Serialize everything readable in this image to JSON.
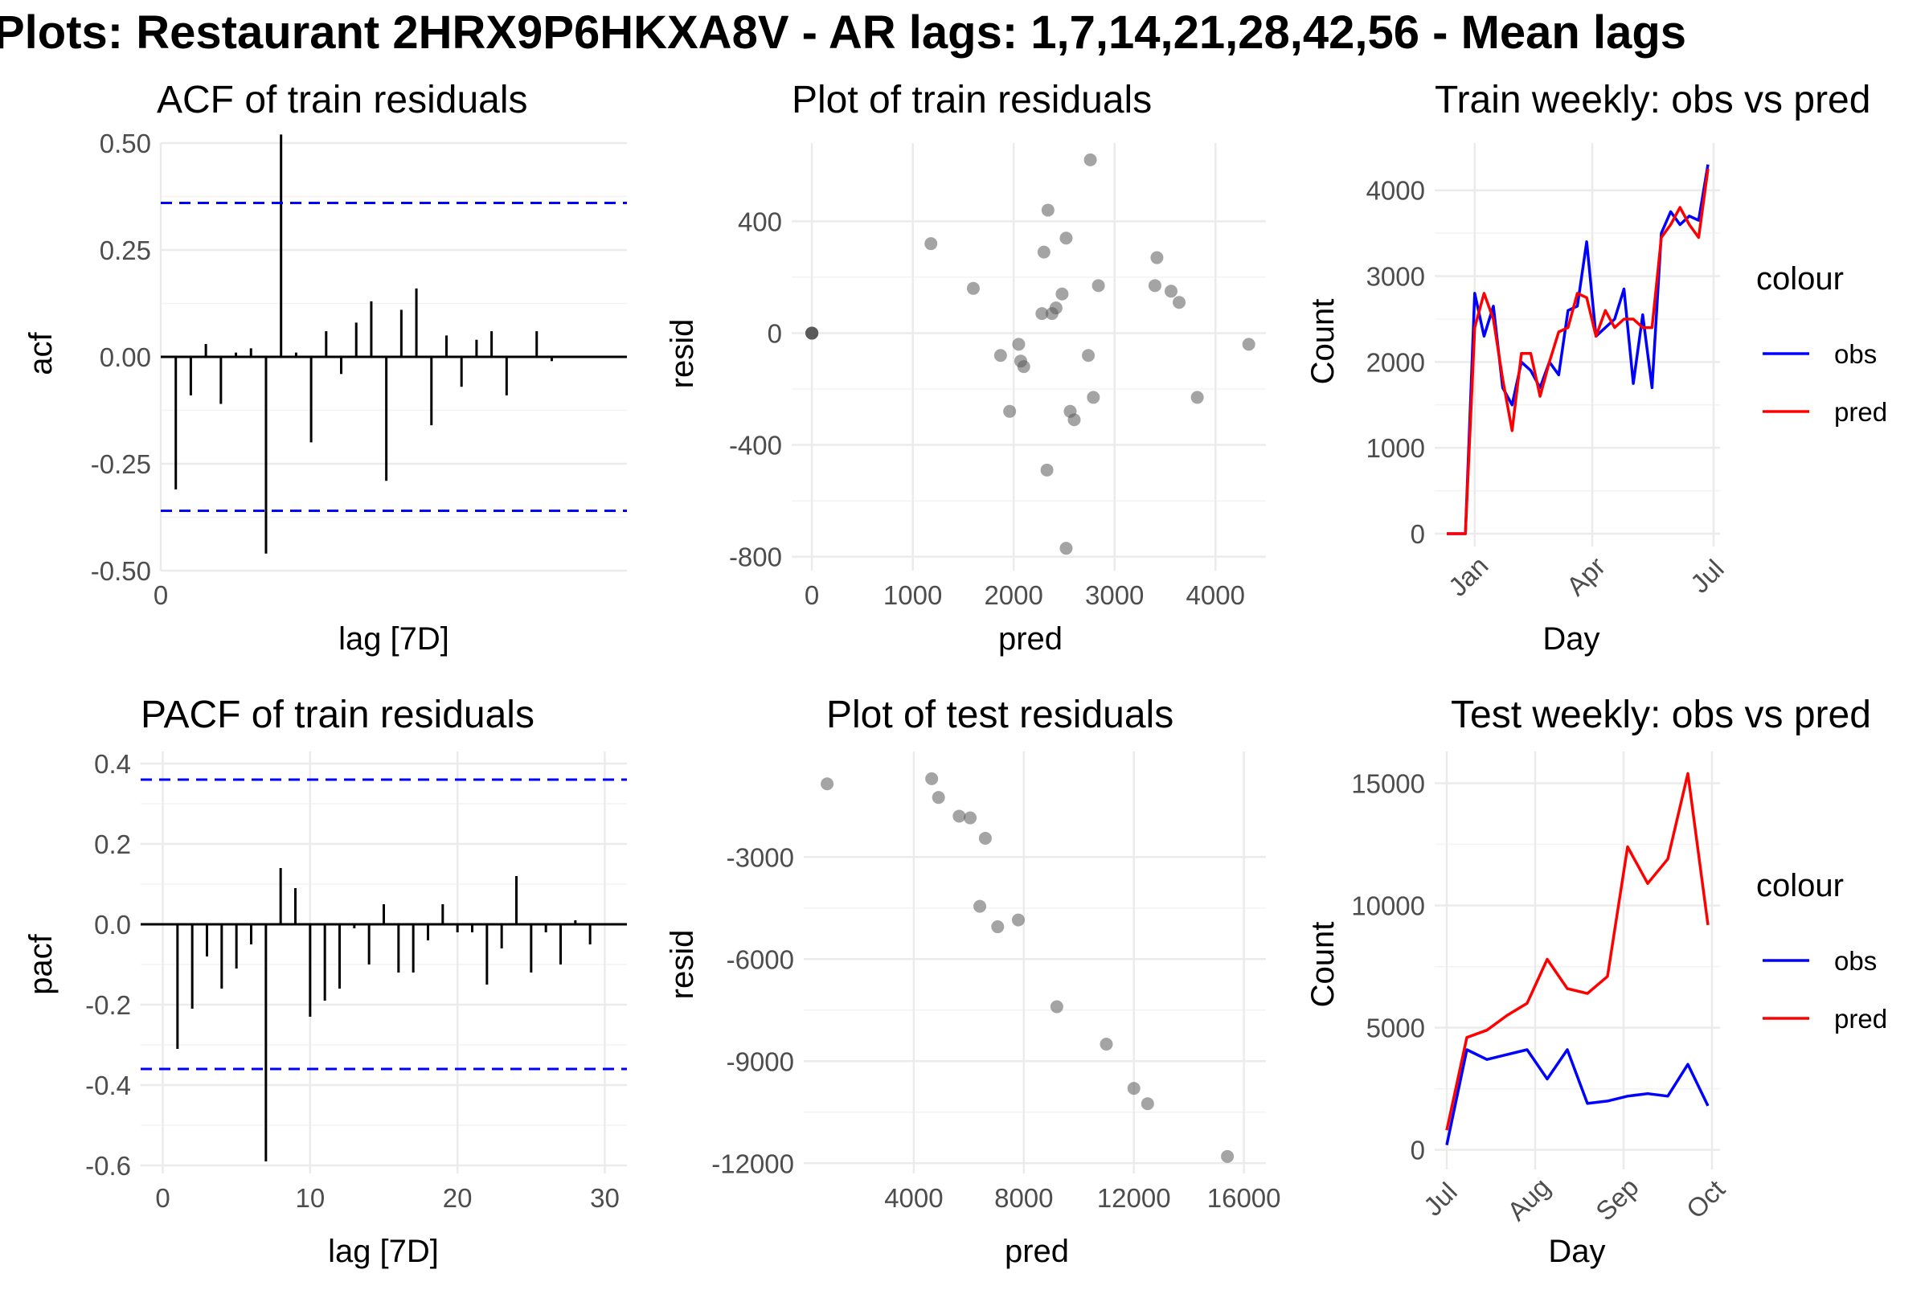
{
  "page_title": "Plots: Restaurant 2HRX9P6HKXA8V - AR lags: 1,7,14,21,28,42,56 - Mean lags",
  "colors": {
    "obs": "#0000ff",
    "pred": "#ff0000",
    "ci": "#0000ff",
    "point": "#5a5a5a",
    "grid": "#ebebeb"
  },
  "chart_data": [
    {
      "type": "bar",
      "title": "ACF of train residuals",
      "xlabel": "lag [7D]",
      "ylabel": "acf",
      "xlim": [
        0,
        31
      ],
      "ylim": [
        -0.5,
        0.5
      ],
      "x_ticks": [
        0
      ],
      "y_ticks": [
        0.5,
        0.25,
        0.0,
        -0.25,
        -0.5
      ],
      "y_tick_labels": [
        "0.50",
        "0.25",
        "0.00",
        "-0.25",
        "-0.50"
      ],
      "ci": 0.36,
      "lags": [
        1,
        2,
        3,
        4,
        5,
        6,
        7,
        8,
        9,
        10,
        11,
        12,
        13,
        14,
        15,
        16,
        17,
        18,
        19,
        20,
        21,
        22,
        23,
        24,
        25,
        26,
        27,
        28,
        29,
        30
      ],
      "values": [
        -0.31,
        -0.09,
        0.03,
        -0.11,
        0.01,
        0.02,
        -0.46,
        0.52,
        0.01,
        -0.2,
        0.06,
        -0.04,
        0.08,
        0.13,
        -0.29,
        0.11,
        0.16,
        -0.16,
        0.05,
        -0.07,
        0.04,
        0.06,
        -0.09,
        0.0,
        0.06,
        -0.01,
        0.0,
        0.0,
        0.0,
        0.0
      ]
    },
    {
      "type": "scatter",
      "title": "Plot of train residuals",
      "xlabel": "pred",
      "ylabel": "resid",
      "xlim": [
        -200,
        4500
      ],
      "ylim": [
        -850,
        680
      ],
      "x_ticks": [
        0,
        1000,
        2000,
        3000,
        4000
      ],
      "y_ticks": [
        400,
        0,
        -400,
        -800
      ],
      "x": [
        0,
        0,
        0,
        0,
        0,
        0,
        1180,
        1600,
        1870,
        1960,
        2050,
        2070,
        2100,
        2280,
        2300,
        2330,
        2340,
        2380,
        2420,
        2480,
        2520,
        2520,
        2560,
        2600,
        2740,
        2760,
        2790,
        2840,
        3400,
        3420,
        3560,
        3640,
        3820,
        4330
      ],
      "y": [
        0,
        0,
        0,
        0,
        0,
        0,
        320,
        160,
        -80,
        -280,
        -40,
        -100,
        -120,
        70,
        290,
        -490,
        440,
        70,
        90,
        140,
        -770,
        340,
        -280,
        -310,
        -80,
        620,
        -230,
        170,
        170,
        270,
        150,
        110,
        -230,
        -40
      ]
    },
    {
      "type": "line",
      "title": "Train weekly: obs vs pred",
      "xlabel": "Day",
      "ylabel": "Count",
      "legend_title": "colour",
      "legend_position": "right",
      "x_ticks": [
        "Jan",
        "Apr",
        "Jul"
      ],
      "y_ticks": [
        0,
        1000,
        2000,
        3000,
        4000
      ],
      "ylim": [
        -150,
        4550
      ],
      "x_tick_weeks": [
        3,
        15.6,
        28.6
      ],
      "series": [
        {
          "name": "obs",
          "values": [
            0,
            0,
            0,
            2800,
            2300,
            2650,
            1700,
            1500,
            2000,
            1900,
            1700,
            2000,
            1850,
            2600,
            2650,
            3400,
            2300,
            2400,
            2500,
            2850,
            1750,
            2550,
            1700,
            3500,
            3750,
            3600,
            3700,
            3650,
            4300
          ]
        },
        {
          "name": "pred",
          "values": [
            0,
            0,
            0,
            2400,
            2800,
            2500,
            1800,
            1200,
            2100,
            2100,
            1600,
            2000,
            2350,
            2400,
            2800,
            2750,
            2300,
            2600,
            2400,
            2500,
            2500,
            2400,
            2400,
            3450,
            3600,
            3800,
            3600,
            3450,
            4250
          ]
        }
      ]
    },
    {
      "type": "bar",
      "title": "PACF of train residuals",
      "xlabel": "lag [7D]",
      "ylabel": "pacf",
      "xlim": [
        -1.5,
        31.5
      ],
      "ylim": [
        -0.62,
        0.43
      ],
      "x_ticks": [
        0,
        10,
        20,
        30
      ],
      "y_ticks": [
        0.4,
        0.2,
        0.0,
        -0.2,
        -0.4,
        -0.6
      ],
      "y_tick_labels": [
        "0.4",
        "0.2",
        "0.0",
        "-0.2",
        "-0.4",
        "-0.6"
      ],
      "ci": 0.36,
      "lags": [
        1,
        2,
        3,
        4,
        5,
        6,
        7,
        8,
        9,
        10,
        11,
        12,
        13,
        14,
        15,
        16,
        17,
        18,
        19,
        20,
        21,
        22,
        23,
        24,
        25,
        26,
        27,
        28,
        29,
        30
      ],
      "values": [
        -0.31,
        -0.21,
        -0.08,
        -0.16,
        -0.11,
        -0.05,
        -0.59,
        0.14,
        0.09,
        -0.23,
        -0.19,
        -0.16,
        -0.01,
        -0.1,
        0.05,
        -0.12,
        -0.12,
        -0.04,
        0.05,
        -0.02,
        -0.02,
        -0.15,
        -0.06,
        0.12,
        -0.12,
        -0.02,
        -0.1,
        0.01,
        -0.05,
        0.0
      ]
    },
    {
      "type": "scatter",
      "title": "Plot of test residuals",
      "xlabel": "pred",
      "ylabel": "resid",
      "xlim": [
        0,
        16800
      ],
      "ylim": [
        -12300,
        100
      ],
      "x_ticks": [
        4000,
        8000,
        12000,
        16000
      ],
      "y_ticks": [
        -3000,
        -6000,
        -9000,
        -12000
      ],
      "x": [
        850,
        4650,
        4900,
        5650,
        6050,
        6400,
        6600,
        7050,
        7800,
        9200,
        11000,
        12000,
        12500,
        15400
      ],
      "y": [
        -850,
        -700,
        -1250,
        -1800,
        -1850,
        -4450,
        -2450,
        -5050,
        -4850,
        -7400,
        -8500,
        -9800,
        -10250,
        -11800
      ]
    },
    {
      "type": "line",
      "title": "Test weekly: obs vs pred",
      "xlabel": "Day",
      "ylabel": "Count",
      "legend_title": "colour",
      "legend_position": "right",
      "x_ticks": [
        "Jul",
        "Aug",
        "Sep",
        "Oct"
      ],
      "y_ticks": [
        0,
        5000,
        10000,
        15000
      ],
      "ylim": [
        -800,
        16300
      ],
      "x_tick_weeks": [
        0,
        4.4,
        8.8,
        13.2
      ],
      "series": [
        {
          "name": "obs",
          "values": [
            200,
            4100,
            3700,
            3900,
            4100,
            2900,
            4100,
            1900,
            2000,
            2200,
            2300,
            2200,
            3500,
            1800
          ]
        },
        {
          "name": "pred",
          "values": [
            800,
            4600,
            4900,
            5500,
            6000,
            7800,
            6600,
            6400,
            7100,
            12400,
            10900,
            11900,
            15400,
            9200
          ]
        }
      ]
    }
  ]
}
